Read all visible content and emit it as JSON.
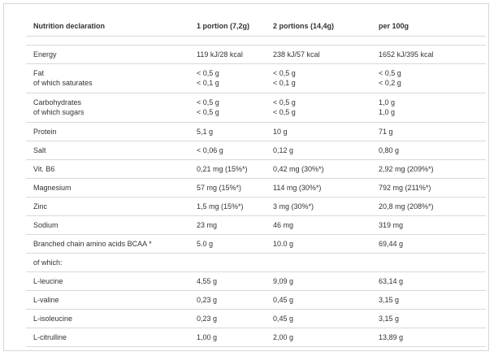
{
  "header": {
    "col1": "Nutrition declaration",
    "col2": "1 portion (7,2g)",
    "col3": "2 portions (14,4g)",
    "col4": "per 100g"
  },
  "rows": [
    {
      "label": [
        "Energy"
      ],
      "v1": [
        "119 kJ/28 kcal"
      ],
      "v2": [
        "238 kJ/57 kcal"
      ],
      "v3": [
        "1652 kJ/395 kcal"
      ]
    },
    {
      "label": [
        "Fat",
        "of which saturates"
      ],
      "v1": [
        "< 0,5 g",
        "< 0,1 g"
      ],
      "v2": [
        "< 0,5 g",
        "< 0,1 g"
      ],
      "v3": [
        "< 0,5 g",
        "< 0,2 g"
      ]
    },
    {
      "label": [
        "Carbohydrates",
        "of which sugars"
      ],
      "v1": [
        "< 0,5 g",
        "< 0,5 g"
      ],
      "v2": [
        "< 0,5 g",
        "< 0,5 g"
      ],
      "v3": [
        "1,0 g",
        "1,0 g"
      ]
    },
    {
      "label": [
        "Protein"
      ],
      "v1": [
        "5,1 g"
      ],
      "v2": [
        "10 g"
      ],
      "v3": [
        "71 g"
      ]
    },
    {
      "label": [
        "Salt"
      ],
      "v1": [
        "< 0,06 g"
      ],
      "v2": [
        "0,12 g"
      ],
      "v3": [
        "0,80 g"
      ]
    },
    {
      "label": [
        "Vit. B6"
      ],
      "v1": [
        "0,21 mg (15%*)"
      ],
      "v2": [
        "0,42 mg (30%*)"
      ],
      "v3": [
        "2,92 mg (209%*)"
      ]
    },
    {
      "label": [
        "Magnesium"
      ],
      "v1": [
        "57 mg (15%*)"
      ],
      "v2": [
        "114 mg (30%*)"
      ],
      "v3": [
        "792 mg (211%*)"
      ]
    },
    {
      "label": [
        "Zinc"
      ],
      "v1": [
        "1,5 mg (15%*)"
      ],
      "v2": [
        "3 mg (30%*)"
      ],
      "v3": [
        "20,8 mg (208%*)"
      ]
    },
    {
      "label": [
        "Sodium"
      ],
      "v1": [
        "23 mg"
      ],
      "v2": [
        "46 mg"
      ],
      "v3": [
        "319 mg"
      ]
    },
    {
      "label": [
        "Branched chain amino acids BCAA *"
      ],
      "v1": [
        "5.0 g"
      ],
      "v2": [
        "10.0 g"
      ],
      "v3": [
        "69,44 g"
      ]
    },
    {
      "label": [
        "of which:"
      ],
      "v1": [],
      "v2": [],
      "v3": []
    },
    {
      "label": [
        "L-leucine"
      ],
      "v1": [
        "4,55 g"
      ],
      "v2": [
        "9,09 g"
      ],
      "v3": [
        "63,14 g"
      ]
    },
    {
      "label": [
        "L-valine"
      ],
      "v1": [
        "0,23 g"
      ],
      "v2": [
        "0,45 g"
      ],
      "v3": [
        "3,15 g"
      ]
    },
    {
      "label": [
        "L-isoleucine"
      ],
      "v1": [
        "0,23 g"
      ],
      "v2": [
        "0,45 g"
      ],
      "v3": [
        "3,15 g"
      ]
    },
    {
      "label": [
        "L-citrulline"
      ],
      "v1": [
        "1,00 g"
      ],
      "v2": [
        "2,00 g"
      ],
      "v3": [
        "13,89 g"
      ]
    }
  ]
}
